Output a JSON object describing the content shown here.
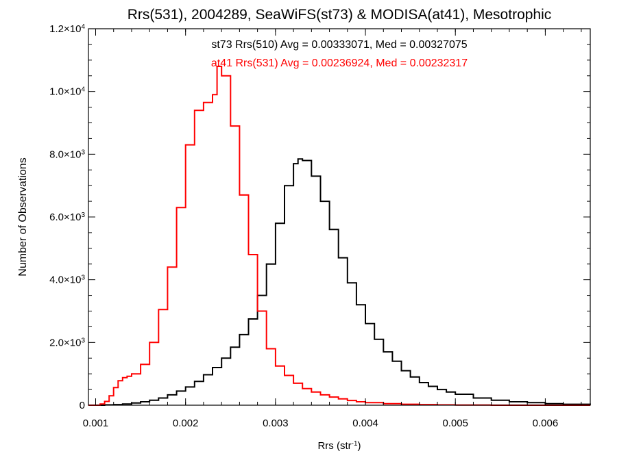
{
  "chart_data": {
    "type": "line",
    "title": "Rrs(531), 2004289, SeaWiFS(st73) & MODISA(at41), Mesotrophic",
    "xlabel": "Rrs (str",
    "xlabel_sup": "-1",
    "xlabel_close": ")",
    "ylabel": "Number of Observations",
    "xlim": [
      0.00092,
      0.0065
    ],
    "ylim": [
      0,
      12000
    ],
    "x_ticks": [
      {
        "value": 0.001,
        "label": "0.001"
      },
      {
        "value": 0.002,
        "label": "0.002"
      },
      {
        "value": 0.003,
        "label": "0.003"
      },
      {
        "value": 0.004,
        "label": "0.004"
      },
      {
        "value": 0.005,
        "label": "0.005"
      },
      {
        "value": 0.006,
        "label": "0.006"
      }
    ],
    "y_ticks": [
      {
        "value": 0,
        "mant": "0",
        "exp": ""
      },
      {
        "value": 2000,
        "mant": "2.0×10",
        "exp": "3"
      },
      {
        "value": 4000,
        "mant": "4.0×10",
        "exp": "3"
      },
      {
        "value": 6000,
        "mant": "6.0×10",
        "exp": "3"
      },
      {
        "value": 8000,
        "mant": "8.0×10",
        "exp": "3"
      },
      {
        "value": 10000,
        "mant": "1.0×10",
        "exp": "4"
      },
      {
        "value": 12000,
        "mant": "1.2×10",
        "exp": "4"
      }
    ],
    "annotations": [
      {
        "text": "st73 Rrs(510) Avg = 0.00333071, Med = 0.00327075",
        "color": "#000000"
      },
      {
        "text": "at41 Rrs(531) Avg = 0.00236924, Med = 0.00232317",
        "color": "#ff0000"
      }
    ],
    "series": [
      {
        "color": "#000000",
        "x": [
          0.00092,
          0.001,
          0.0011,
          0.0012,
          0.0013,
          0.0014,
          0.0015,
          0.0016,
          0.0017,
          0.0018,
          0.0019,
          0.002,
          0.0021,
          0.0022,
          0.0023,
          0.0024,
          0.0025,
          0.0026,
          0.0027,
          0.0028,
          0.0029,
          0.003,
          0.0031,
          0.0032,
          0.00325,
          0.0033,
          0.0034,
          0.0035,
          0.0036,
          0.0037,
          0.0038,
          0.0039,
          0.004,
          0.0041,
          0.0042,
          0.0043,
          0.0044,
          0.0045,
          0.0046,
          0.0047,
          0.0048,
          0.0049,
          0.005,
          0.0052,
          0.0054,
          0.0056,
          0.0058,
          0.006,
          0.0062,
          0.0065
        ],
        "y": [
          0,
          0,
          10,
          20,
          40,
          70,
          110,
          160,
          230,
          330,
          450,
          580,
          760,
          970,
          1200,
          1500,
          1850,
          2250,
          2750,
          3500,
          4500,
          5800,
          7000,
          7700,
          7850,
          7800,
          7300,
          6500,
          5600,
          4700,
          3900,
          3200,
          2600,
          2100,
          1700,
          1400,
          1100,
          900,
          720,
          600,
          500,
          420,
          350,
          230,
          160,
          110,
          80,
          50,
          30,
          20
        ]
      },
      {
        "color": "#ff0000",
        "x": [
          0.00092,
          0.001,
          0.00105,
          0.0011,
          0.00115,
          0.0012,
          0.00125,
          0.0013,
          0.00135,
          0.0014,
          0.0015,
          0.0016,
          0.0017,
          0.0018,
          0.0019,
          0.002,
          0.0021,
          0.0022,
          0.0023,
          0.00235,
          0.0024,
          0.0025,
          0.0026,
          0.0027,
          0.0028,
          0.0029,
          0.003,
          0.0031,
          0.0032,
          0.0033,
          0.0034,
          0.0035,
          0.0036,
          0.0037,
          0.0038,
          0.0039,
          0.004,
          0.0042,
          0.0044,
          0.0046,
          0.0048,
          0.005,
          0.0054,
          0.0058,
          0.0062,
          0.0065
        ],
        "y": [
          0,
          0,
          40,
          120,
          300,
          560,
          780,
          880,
          920,
          1000,
          1300,
          2000,
          3050,
          4400,
          6300,
          8300,
          9400,
          9650,
          9900,
          10800,
          10500,
          8900,
          6700,
          4800,
          3000,
          1800,
          1250,
          950,
          700,
          530,
          420,
          330,
          260,
          200,
          150,
          110,
          80,
          50,
          30,
          20,
          10,
          5,
          0,
          0,
          0,
          0
        ]
      }
    ]
  }
}
